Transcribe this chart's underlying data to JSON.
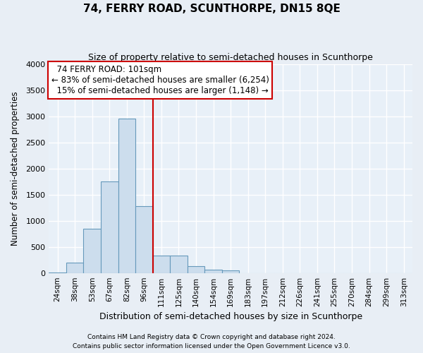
{
  "title": "74, FERRY ROAD, SCUNTHORPE, DN15 8QE",
  "subtitle": "Size of property relative to semi-detached houses in Scunthorpe",
  "xlabel": "Distribution of semi-detached houses by size in Scunthorpe",
  "ylabel": "Number of semi-detached properties",
  "footnote1": "Contains HM Land Registry data © Crown copyright and database right 2024.",
  "footnote2": "Contains public sector information licensed under the Open Government Licence v3.0.",
  "property_label": "74 FERRY ROAD: 101sqm",
  "pct_smaller": 83,
  "pct_larger": 15,
  "n_smaller": 6254,
  "n_larger": 1148,
  "bar_color": "#ccdded",
  "bar_edge_color": "#6699bb",
  "vline_color": "#cc0000",
  "annotation_box_edgecolor": "#cc0000",
  "fig_facecolor": "#e8eef5",
  "ax_facecolor": "#e8f0f8",
  "grid_color": "#ffffff",
  "categories": [
    "24sqm",
    "38sqm",
    "53sqm",
    "67sqm",
    "82sqm",
    "96sqm",
    "111sqm",
    "125sqm",
    "140sqm",
    "154sqm",
    "169sqm",
    "183sqm",
    "197sqm",
    "212sqm",
    "226sqm",
    "241sqm",
    "255sqm",
    "270sqm",
    "284sqm",
    "299sqm",
    "313sqm"
  ],
  "values": [
    10,
    195,
    850,
    1750,
    2950,
    1280,
    330,
    330,
    130,
    65,
    50,
    0,
    0,
    0,
    0,
    0,
    0,
    0,
    0,
    0,
    0
  ],
  "bin_width": 14,
  "bin_starts": [
    17,
    31,
    45,
    59,
    73,
    87,
    101,
    115,
    129,
    143,
    157,
    171,
    185,
    199,
    213,
    227,
    241,
    255,
    269,
    283,
    297
  ],
  "vline_x": 101,
  "ylim": [
    0,
    4000
  ],
  "yticks": [
    0,
    500,
    1000,
    1500,
    2000,
    2500,
    3000,
    3500,
    4000
  ],
  "xlim_left": 17,
  "xlim_right": 311
}
